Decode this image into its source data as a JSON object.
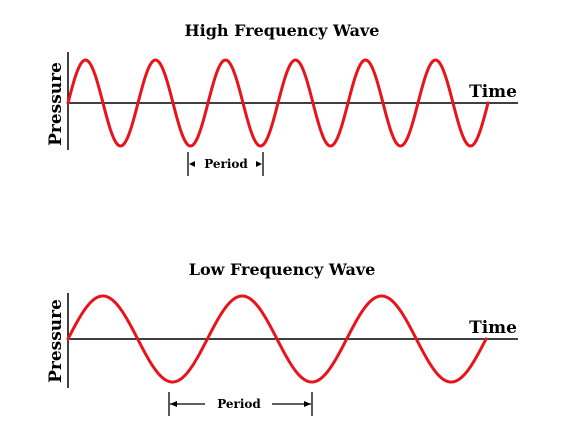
{
  "colors": {
    "wave": "#e8141c",
    "axis": "#000000",
    "text": "#000000"
  },
  "diagrams": [
    {
      "id": "high",
      "title": "High Frequency Wave",
      "ylabel": "Pressure",
      "xlabel": "Time",
      "period_label": "Period",
      "cycles": 6
    },
    {
      "id": "low",
      "title": "Low Frequency Wave",
      "ylabel": "Pressure",
      "xlabel": "Time",
      "period_label": "Period",
      "cycles": 3
    }
  ]
}
